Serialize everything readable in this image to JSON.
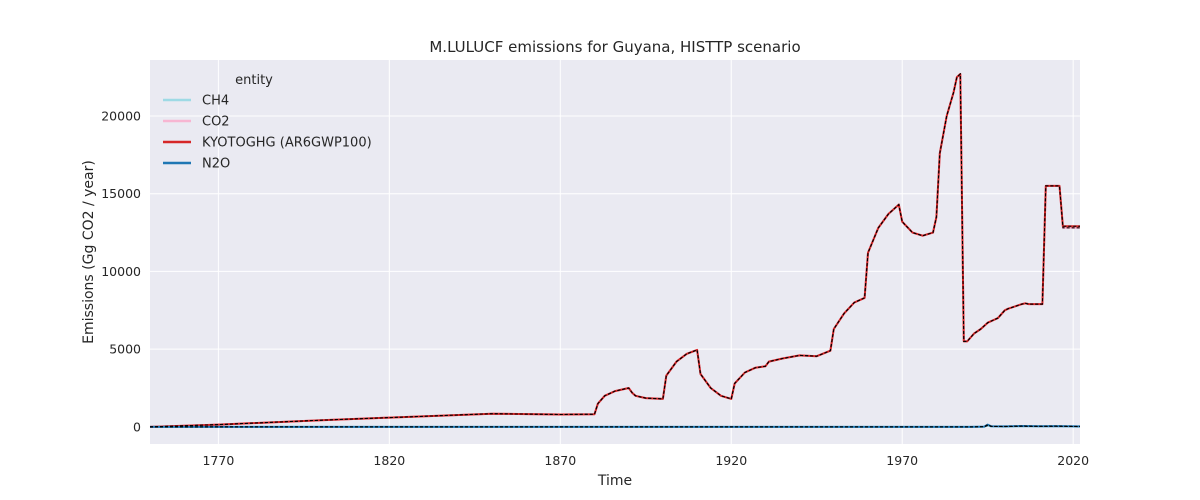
{
  "chart_data": {
    "type": "line",
    "title": "M.LULUCF emissions for Guyana, HISTTP scenario",
    "xlabel": "Time",
    "ylabel": "Emissions (Gg CO2 / year)",
    "xlim": [
      1750,
      2022
    ],
    "ylim": [
      -1100,
      23600
    ],
    "xticks": [
      1770,
      1820,
      1870,
      1920,
      1970,
      2020
    ],
    "yticks": [
      0,
      5000,
      10000,
      15000,
      20000
    ],
    "grid": true,
    "legend": {
      "title": "entity",
      "placement": "top-left"
    },
    "series": [
      {
        "name": "CH4",
        "color": "#9edae5",
        "x": [
          1750,
          1880,
          1900,
          1920,
          1950,
          1970,
          1985,
          1990,
          1994,
          1995,
          1996,
          2000,
          2005,
          2010,
          2015,
          2022
        ],
        "values": [
          0,
          0,
          0,
          0,
          0,
          0,
          0,
          0,
          10,
          80,
          30,
          20,
          40,
          30,
          40,
          20
        ]
      },
      {
        "name": "CO2",
        "color": "#f7b6d2",
        "x": [
          1750,
          1770,
          1800,
          1820,
          1850,
          1870,
          1880,
          1881,
          1883,
          1886,
          1890,
          1891,
          1892,
          1895,
          1900,
          1901,
          1904,
          1907,
          1910,
          1911,
          1914,
          1917,
          1920,
          1921,
          1924,
          1927,
          1930,
          1931,
          1935,
          1940,
          1945,
          1949,
          1950,
          1953,
          1956,
          1959,
          1960,
          1963,
          1966,
          1969,
          1970,
          1973,
          1976,
          1979,
          1980,
          1981,
          1983,
          1985,
          1986,
          1987,
          1988,
          1989,
          1991,
          1993,
          1995,
          1997,
          1998,
          2000,
          2001,
          2005,
          2006,
          2007,
          2011,
          2012,
          2016,
          2017,
          2022
        ],
        "values": [
          0,
          150,
          430,
          600,
          850,
          800,
          820,
          1500,
          2000,
          2300,
          2500,
          2200,
          2000,
          1850,
          1800,
          3300,
          4200,
          4700,
          4950,
          3400,
          2500,
          2000,
          1800,
          2800,
          3500,
          3800,
          3900,
          4200,
          4400,
          4600,
          4550,
          4900,
          6300,
          7300,
          8000,
          8300,
          11200,
          12800,
          13700,
          14300,
          13200,
          12500,
          12300,
          12500,
          13500,
          17600,
          20000,
          21500,
          22500,
          22700,
          5500,
          5500,
          6000,
          6300,
          6700,
          6900,
          7000,
          7500,
          7600,
          7900,
          7950,
          7900,
          7900,
          15500,
          15500,
          12800,
          12800
        ]
      },
      {
        "name": "KYOTOGHG (AR6GWP100)",
        "color": "#d62728",
        "x": [
          1750,
          1770,
          1800,
          1820,
          1850,
          1870,
          1880,
          1881,
          1883,
          1886,
          1890,
          1891,
          1892,
          1895,
          1900,
          1901,
          1904,
          1907,
          1910,
          1911,
          1914,
          1917,
          1920,
          1921,
          1924,
          1927,
          1930,
          1931,
          1935,
          1940,
          1945,
          1949,
          1950,
          1953,
          1956,
          1959,
          1960,
          1963,
          1966,
          1969,
          1970,
          1973,
          1976,
          1979,
          1980,
          1981,
          1983,
          1985,
          1986,
          1987,
          1988,
          1989,
          1991,
          1993,
          1995,
          1997,
          1998,
          2000,
          2001,
          2005,
          2006,
          2007,
          2011,
          2012,
          2016,
          2017,
          2022
        ],
        "values": [
          0,
          150,
          430,
          600,
          850,
          800,
          820,
          1500,
          2000,
          2300,
          2500,
          2200,
          2000,
          1850,
          1800,
          3300,
          4200,
          4700,
          4950,
          3400,
          2500,
          2000,
          1800,
          2800,
          3500,
          3800,
          3900,
          4200,
          4400,
          4600,
          4550,
          4900,
          6300,
          7300,
          8000,
          8300,
          11200,
          12800,
          13700,
          14300,
          13200,
          12500,
          12300,
          12500,
          13500,
          17600,
          20000,
          21500,
          22500,
          22700,
          5500,
          5500,
          6000,
          6300,
          6700,
          6900,
          7000,
          7500,
          7600,
          7900,
          7950,
          7900,
          7900,
          15500,
          15500,
          12900,
          12900
        ]
      },
      {
        "name": "N2O",
        "color": "#1f77b4",
        "x": [
          1750,
          1880,
          1900,
          1920,
          1950,
          1970,
          1985,
          1990,
          1994,
          1995,
          1996,
          2000,
          2005,
          2010,
          2015,
          2022
        ],
        "values": [
          0,
          0,
          0,
          0,
          0,
          0,
          0,
          0,
          20,
          150,
          40,
          30,
          60,
          40,
          50,
          30
        ]
      }
    ]
  }
}
